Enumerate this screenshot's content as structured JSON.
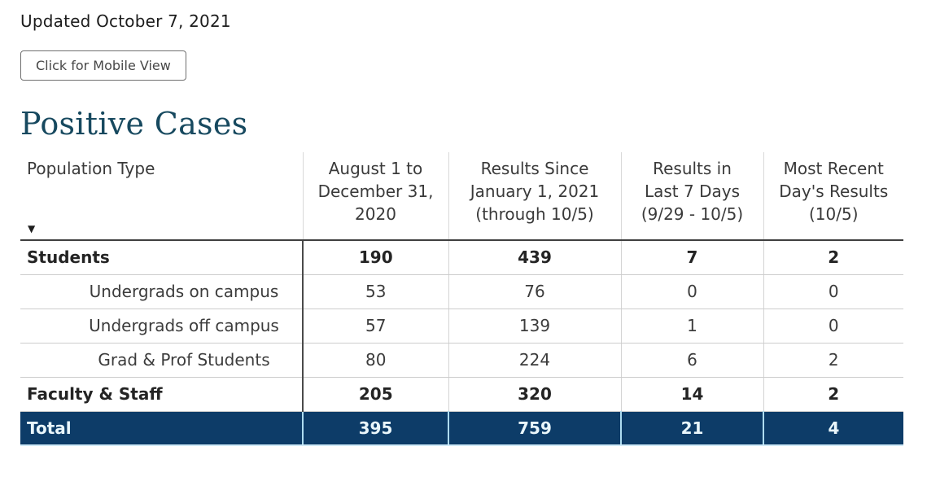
{
  "page": {
    "updated_text": "Updated October 7, 2021",
    "mobile_view_button_label": "Click for Mobile View",
    "title": "Positive Cases"
  },
  "table": {
    "sort_icon": "▼",
    "columns": [
      "Population Type",
      "August 1 to\nDecember 31,\n2020",
      "Results Since\nJanuary 1, 2021\n(through 10/5)",
      "Results in\nLast 7 Days\n(9/29 - 10/5)",
      "Most Recent\nDay's Results\n(10/5)"
    ],
    "rows": [
      {
        "label": "Students",
        "style": "group",
        "values": [
          "190",
          "439",
          "7",
          "2"
        ]
      },
      {
        "label": "Undergrads on campus",
        "style": "sub",
        "values": [
          "53",
          "76",
          "0",
          "0"
        ]
      },
      {
        "label": "Undergrads off campus",
        "style": "sub",
        "values": [
          "57",
          "139",
          "1",
          "0"
        ]
      },
      {
        "label": "Grad & Prof Students",
        "style": "sub",
        "values": [
          "80",
          "224",
          "6",
          "2"
        ]
      },
      {
        "label": "Faculty & Staff",
        "style": "group",
        "values": [
          "205",
          "320",
          "14",
          "2"
        ]
      },
      {
        "label": "Total",
        "style": "total",
        "values": [
          "395",
          "759",
          "21",
          "4"
        ]
      }
    ]
  },
  "colors": {
    "title": "#17495f",
    "total_row_background": "#0d3c68",
    "total_row_text": "#e9f6fb",
    "total_row_divider": "#aedcf0",
    "header_rule": "#3f3f3f",
    "row_divider": "#cccccc",
    "body_column_rule": "#4a4a4a"
  }
}
